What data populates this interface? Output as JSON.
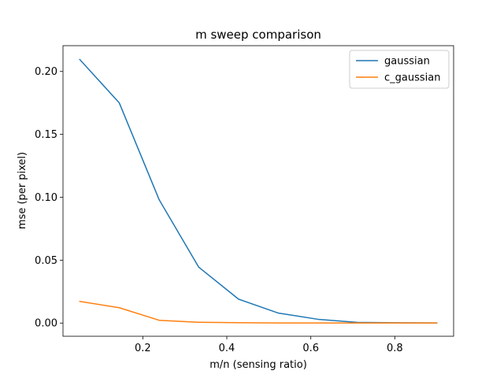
{
  "chart_data": {
    "type": "line",
    "title": "m sweep comparison",
    "xlabel": "m/n (sensing ratio)",
    "ylabel": "mse (per pixel)",
    "xlim": [
      0.01,
      0.94
    ],
    "ylim": [
      -0.0105,
      0.2205
    ],
    "x_ticks": [
      0.2,
      0.4,
      0.6,
      0.8
    ],
    "x_tick_labels": [
      "0.2",
      "0.4",
      "0.6",
      "0.8"
    ],
    "y_ticks": [
      0.0,
      0.05,
      0.1,
      0.15,
      0.2
    ],
    "y_tick_labels": [
      "0.00",
      "0.05",
      "0.10",
      "0.15",
      "0.20"
    ],
    "grid": false,
    "legend_position": "top-right",
    "x": [
      0.05,
      0.144,
      0.239,
      0.333,
      0.428,
      0.522,
      0.617,
      0.711,
      0.806,
      0.9
    ],
    "series": [
      {
        "name": "gaussian",
        "color": "#1f77b4",
        "values": [
          0.2095,
          0.175,
          0.098,
          0.0445,
          0.019,
          0.008,
          0.003,
          0.0005,
          0.0002,
          0.0001
        ]
      },
      {
        "name": "c_gaussian",
        "color": "#ff7f0e",
        "values": [
          0.0172,
          0.0122,
          0.0022,
          0.0006,
          0.0003,
          0.0001,
          0.0001,
          0.0001,
          0.0001,
          0.0001
        ]
      }
    ]
  }
}
